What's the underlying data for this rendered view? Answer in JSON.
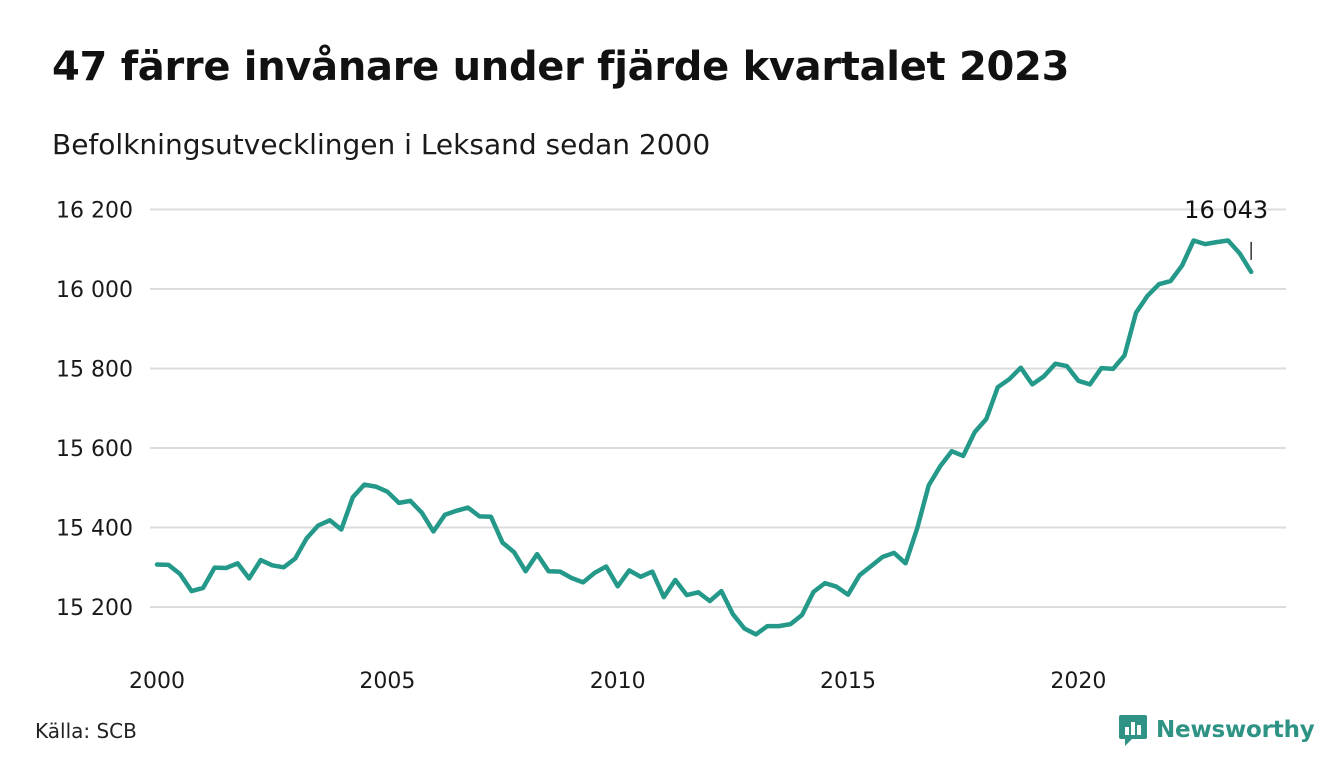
{
  "title": "47 färre invånare under fjärde kvartalet 2023",
  "subtitle": "Befolkningsutvecklingen i Leksand sedan 2000",
  "source": "Källa: SCB",
  "brand": {
    "name": "Newsworthy",
    "icon": "newsworthy-logo-icon",
    "color": "#2e9384"
  },
  "chart_data": {
    "type": "line",
    "title": "",
    "xlabel": "",
    "ylabel": "",
    "xlim": [
      2000,
      2024
    ],
    "ylim": [
      15100,
      16260
    ],
    "y_ticks": [
      15200,
      15400,
      15600,
      15800,
      16000,
      16200
    ],
    "y_tick_labels": [
      "15 200",
      "15 400",
      "15 600",
      "15 800",
      "16 000",
      "16 200"
    ],
    "x_ticks": [
      2000,
      2005,
      2010,
      2015,
      2020
    ],
    "x_tick_labels": [
      "2000",
      "2005",
      "2010",
      "2015",
      "2020"
    ],
    "grid": true,
    "line_color": "#24998a",
    "annotation": {
      "text": "16 043",
      "value": 16043
    },
    "series": [
      {
        "name": "",
        "x": [
          2000.0,
          2000.25,
          2000.5,
          2000.75,
          2001.0,
          2001.25,
          2001.5,
          2001.75,
          2002.0,
          2002.25,
          2002.5,
          2002.75,
          2003.0,
          2003.25,
          2003.5,
          2003.75,
          2004.0,
          2004.25,
          2004.5,
          2004.75,
          2005.0,
          2005.25,
          2005.5,
          2005.75,
          2006.0,
          2006.25,
          2006.5,
          2006.75,
          2007.0,
          2007.25,
          2007.5,
          2007.75,
          2008.0,
          2008.25,
          2008.5,
          2008.75,
          2009.0,
          2009.25,
          2009.5,
          2009.75,
          2010.0,
          2010.25,
          2010.5,
          2010.75,
          2011.0,
          2011.25,
          2011.5,
          2011.75,
          2012.0,
          2012.25,
          2012.5,
          2012.75,
          2013.0,
          2013.25,
          2013.5,
          2013.75,
          2014.0,
          2014.25,
          2014.5,
          2014.75,
          2015.0,
          2015.25,
          2015.5,
          2015.75,
          2016.0,
          2016.25,
          2016.5,
          2016.75,
          2017.0,
          2017.25,
          2017.5,
          2017.75,
          2018.0,
          2018.25,
          2018.5,
          2018.75,
          2019.0,
          2019.25,
          2019.5,
          2019.75,
          2020.0,
          2020.25,
          2020.5,
          2020.75,
          2021.0,
          2021.25,
          2021.5,
          2021.75,
          2022.0,
          2022.25,
          2022.5,
          2022.75,
          2023.0,
          2023.25,
          2023.5,
          2023.75
        ],
        "y": [
          15307,
          15306,
          15283,
          15240,
          15248,
          15299,
          15298,
          15310,
          15272,
          15318,
          15305,
          15300,
          15322,
          15373,
          15405,
          15418,
          15395,
          15476,
          15508,
          15503,
          15490,
          15462,
          15467,
          15437,
          15390,
          15432,
          15442,
          15450,
          15428,
          15427,
          15362,
          15338,
          15290,
          15333,
          15290,
          15289,
          15273,
          15262,
          15286,
          15302,
          15252,
          15292,
          15276,
          15289,
          15225,
          15268,
          15230,
          15237,
          15215,
          15240,
          15182,
          15146,
          15131,
          15152,
          15152,
          15157,
          15180,
          15238,
          15260,
          15251,
          15231,
          15280,
          15303,
          15326,
          15336,
          15310,
          15398,
          15506,
          15554,
          15592,
          15580,
          15640,
          15673,
          15753,
          15773,
          15802,
          15760,
          15780,
          15812,
          15806,
          15769,
          15760,
          15801,
          15799,
          15833,
          15940,
          15983,
          16012,
          16020,
          16059,
          16122,
          16113,
          16118,
          16122,
          16090,
          16043
        ]
      }
    ]
  }
}
